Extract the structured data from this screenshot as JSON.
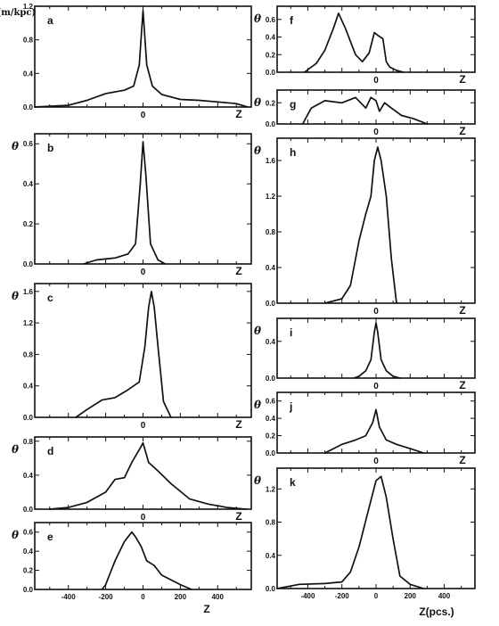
{
  "figure": {
    "theta_label": "θ",
    "z_label": "Z",
    "z_unit_label": "Z(pcs.)",
    "theta_unit_label": "θ(m/kpc)"
  },
  "chart_data": [
    {
      "id": "a",
      "type": "line",
      "panel_label": "a",
      "x_range": [
        -580,
        580
      ],
      "ylim": [
        0,
        1.2
      ],
      "yticks": [
        0.0,
        0.4,
        0.8,
        1.2
      ],
      "ytick_labels": [
        "0.0",
        "0.4",
        "0.8",
        "1.2"
      ],
      "xtick_labels": [
        {
          "x": 0,
          "label": "0"
        }
      ],
      "ylabel": "θ(m/kpc)",
      "xlabel": "Z",
      "x": [
        -580,
        -400,
        -300,
        -200,
        -100,
        -50,
        -20,
        0,
        20,
        50,
        100,
        200,
        300,
        400,
        500,
        560
      ],
      "y": [
        0.0,
        0.02,
        0.08,
        0.16,
        0.2,
        0.25,
        0.5,
        1.15,
        0.5,
        0.25,
        0.15,
        0.09,
        0.08,
        0.06,
        0.04,
        0.0
      ]
    },
    {
      "id": "b",
      "type": "line",
      "panel_label": "b",
      "x_range": [
        -580,
        580
      ],
      "ylim": [
        0,
        0.65
      ],
      "yticks": [
        0.0,
        0.2,
        0.4,
        0.6
      ],
      "ytick_labels": [
        "0.0",
        "0.2",
        "0.4",
        "0.6"
      ],
      "xtick_labels": [
        {
          "x": 0,
          "label": "0"
        }
      ],
      "ylabel": "θ",
      "xlabel": "Z",
      "x": [
        -320,
        -250,
        -150,
        -80,
        -40,
        -15,
        0,
        15,
        40,
        80,
        120
      ],
      "y": [
        0.0,
        0.02,
        0.03,
        0.05,
        0.1,
        0.4,
        0.61,
        0.45,
        0.1,
        0.02,
        0.0
      ]
    },
    {
      "id": "c",
      "type": "line",
      "panel_label": "c",
      "x_range": [
        -580,
        580
      ],
      "ylim": [
        0,
        1.7
      ],
      "yticks": [
        0.0,
        0.4,
        0.8,
        1.2,
        1.6
      ],
      "ytick_labels": [
        "0.0",
        "0.4",
        "0.8",
        "1.2",
        "1.6"
      ],
      "xtick_labels": [
        {
          "x": 0,
          "label": "0"
        }
      ],
      "ylabel": "θ",
      "xlabel": "Z",
      "x": [
        -360,
        -300,
        -220,
        -150,
        -80,
        -20,
        10,
        30,
        45,
        60,
        80,
        110,
        150
      ],
      "y": [
        0.0,
        0.1,
        0.22,
        0.25,
        0.35,
        0.45,
        0.9,
        1.4,
        1.6,
        1.4,
        0.9,
        0.2,
        0.0
      ]
    },
    {
      "id": "d",
      "type": "line",
      "panel_label": "d",
      "x_range": [
        -580,
        580
      ],
      "ylim": [
        0,
        0.85
      ],
      "yticks": [
        0.0,
        0.4,
        0.8
      ],
      "ytick_labels": [
        "0.0",
        "0.4",
        "0.8"
      ],
      "xtick_labels": [
        {
          "x": 0,
          "label": "0"
        }
      ],
      "ylabel": "θ",
      "xlabel": "Z",
      "x": [
        -500,
        -400,
        -300,
        -200,
        -150,
        -100,
        -60,
        -20,
        0,
        30,
        80,
        150,
        250,
        350,
        450,
        550
      ],
      "y": [
        0.0,
        0.02,
        0.08,
        0.2,
        0.35,
        0.37,
        0.55,
        0.7,
        0.78,
        0.55,
        0.45,
        0.3,
        0.12,
        0.06,
        0.02,
        0.0
      ]
    },
    {
      "id": "e",
      "type": "line",
      "panel_label": "e",
      "x_range": [
        -580,
        580
      ],
      "ylim": [
        0,
        0.7
      ],
      "yticks": [
        0.0,
        0.2,
        0.4,
        0.6
      ],
      "ytick_labels": [
        "0.0",
        "0.2",
        "0.4",
        "0.6"
      ],
      "xticks": [
        -400,
        -200,
        0,
        200,
        400
      ],
      "xtick_labels": [
        {
          "x": -400,
          "label": "-400"
        },
        {
          "x": -200,
          "label": "-200"
        },
        {
          "x": 0,
          "label": "0"
        },
        {
          "x": 200,
          "label": "200"
        },
        {
          "x": 400,
          "label": "400"
        }
      ],
      "ylabel": "θ",
      "xlabel": "Z",
      "x": [
        -220,
        -200,
        -150,
        -100,
        -60,
        -40,
        -10,
        20,
        60,
        100,
        150,
        200,
        260
      ],
      "y": [
        0.0,
        0.05,
        0.3,
        0.5,
        0.6,
        0.55,
        0.45,
        0.3,
        0.25,
        0.15,
        0.1,
        0.05,
        0.0
      ]
    },
    {
      "id": "f",
      "type": "line",
      "panel_label": "f",
      "x_range": [
        -580,
        580
      ],
      "ylim": [
        0,
        0.75
      ],
      "yticks": [
        0.0,
        0.2,
        0.4,
        0.6
      ],
      "ytick_labels": [
        "0.0",
        "0.2",
        "0.4",
        "0.6"
      ],
      "xtick_labels": [
        {
          "x": 0,
          "label": "0"
        }
      ],
      "ylabel": "θ",
      "xlabel": "Z",
      "x": [
        -420,
        -350,
        -300,
        -250,
        -220,
        -180,
        -120,
        -80,
        -40,
        -10,
        10,
        40,
        60,
        80,
        120,
        160
      ],
      "y": [
        0.0,
        0.1,
        0.25,
        0.5,
        0.67,
        0.5,
        0.2,
        0.12,
        0.22,
        0.45,
        0.42,
        0.38,
        0.12,
        0.06,
        0.02,
        0.0
      ]
    },
    {
      "id": "g",
      "type": "line",
      "panel_label": "g",
      "x_range": [
        -580,
        580
      ],
      "ylim": [
        0,
        0.32
      ],
      "yticks": [
        0.0,
        0.2
      ],
      "ytick_labels": [
        "0.0",
        "0.2"
      ],
      "xtick_labels": [
        {
          "x": 0,
          "label": "0"
        }
      ],
      "ylabel": "θ",
      "xlabel": "Z",
      "x": [
        -430,
        -380,
        -300,
        -200,
        -120,
        -60,
        -30,
        0,
        20,
        50,
        90,
        150,
        220,
        300
      ],
      "y": [
        0.0,
        0.15,
        0.22,
        0.2,
        0.25,
        0.15,
        0.25,
        0.22,
        0.12,
        0.2,
        0.15,
        0.08,
        0.05,
        0.0
      ]
    },
    {
      "id": "h",
      "type": "line",
      "panel_label": "h",
      "x_range": [
        -580,
        580
      ],
      "ylim": [
        0,
        1.85
      ],
      "yticks": [
        0.0,
        0.4,
        0.8,
        1.2,
        1.6
      ],
      "ytick_labels": [
        "0.0",
        "0.4",
        "0.8",
        "1.2",
        "1.6"
      ],
      "xtick_labels": [
        {
          "x": 0,
          "label": "0"
        }
      ],
      "ylabel": "θ",
      "xlabel": "Z",
      "x": [
        -300,
        -200,
        -150,
        -100,
        -60,
        -30,
        -10,
        10,
        30,
        60,
        90,
        120
      ],
      "y": [
        0.0,
        0.05,
        0.2,
        0.7,
        1.0,
        1.2,
        1.6,
        1.75,
        1.6,
        1.2,
        0.5,
        0.0
      ]
    },
    {
      "id": "i",
      "type": "line",
      "panel_label": "i",
      "x_range": [
        -580,
        580
      ],
      "ylim": [
        0,
        0.65
      ],
      "yticks": [
        0.0,
        0.4
      ],
      "ytick_labels": [
        "0.0",
        "0.4"
      ],
      "xtick_labels": [
        {
          "x": 0,
          "label": "0"
        }
      ],
      "ylabel": "θ",
      "xlabel": "Z",
      "x": [
        -130,
        -100,
        -60,
        -30,
        -10,
        0,
        10,
        30,
        60,
        100,
        140
      ],
      "y": [
        0.0,
        0.02,
        0.08,
        0.2,
        0.5,
        0.6,
        0.5,
        0.2,
        0.08,
        0.02,
        0.0
      ]
    },
    {
      "id": "j",
      "type": "line",
      "panel_label": "j",
      "x_range": [
        -580,
        580
      ],
      "ylim": [
        0,
        0.7
      ],
      "yticks": [
        0.0,
        0.2,
        0.4,
        0.6
      ],
      "ytick_labels": [
        "0.0",
        "0.2",
        "0.4",
        "0.6"
      ],
      "xtick_labels": [
        {
          "x": 0,
          "label": "0"
        }
      ],
      "ylabel": "θ",
      "xlabel": "Z",
      "x": [
        -300,
        -200,
        -120,
        -60,
        -20,
        0,
        20,
        60,
        120,
        200,
        280
      ],
      "y": [
        0.0,
        0.1,
        0.15,
        0.2,
        0.35,
        0.5,
        0.3,
        0.15,
        0.1,
        0.05,
        0.0
      ]
    },
    {
      "id": "k",
      "type": "line",
      "panel_label": "k",
      "x_range": [
        -580,
        580
      ],
      "ylim": [
        0,
        1.45
      ],
      "yticks": [
        0.0,
        0.4,
        0.8,
        1.2
      ],
      "ytick_labels": [
        "0.0",
        "0.4",
        "0.8",
        "1.2"
      ],
      "xticks": [
        -400,
        -200,
        0,
        200,
        400
      ],
      "xtick_labels": [
        {
          "x": -400,
          "label": "-400"
        },
        {
          "x": -200,
          "label": "-200"
        },
        {
          "x": 0,
          "label": "0"
        },
        {
          "x": 200,
          "label": "200"
        },
        {
          "x": 400,
          "label": "400"
        }
      ],
      "ylabel": "θ",
      "xlabel": "Z(pcs.)",
      "x": [
        -580,
        -450,
        -300,
        -200,
        -150,
        -100,
        -50,
        0,
        30,
        60,
        100,
        140,
        200,
        280
      ],
      "y": [
        0.0,
        0.05,
        0.06,
        0.08,
        0.2,
        0.5,
        0.9,
        1.3,
        1.35,
        1.1,
        0.6,
        0.15,
        0.05,
        0.0
      ]
    }
  ]
}
